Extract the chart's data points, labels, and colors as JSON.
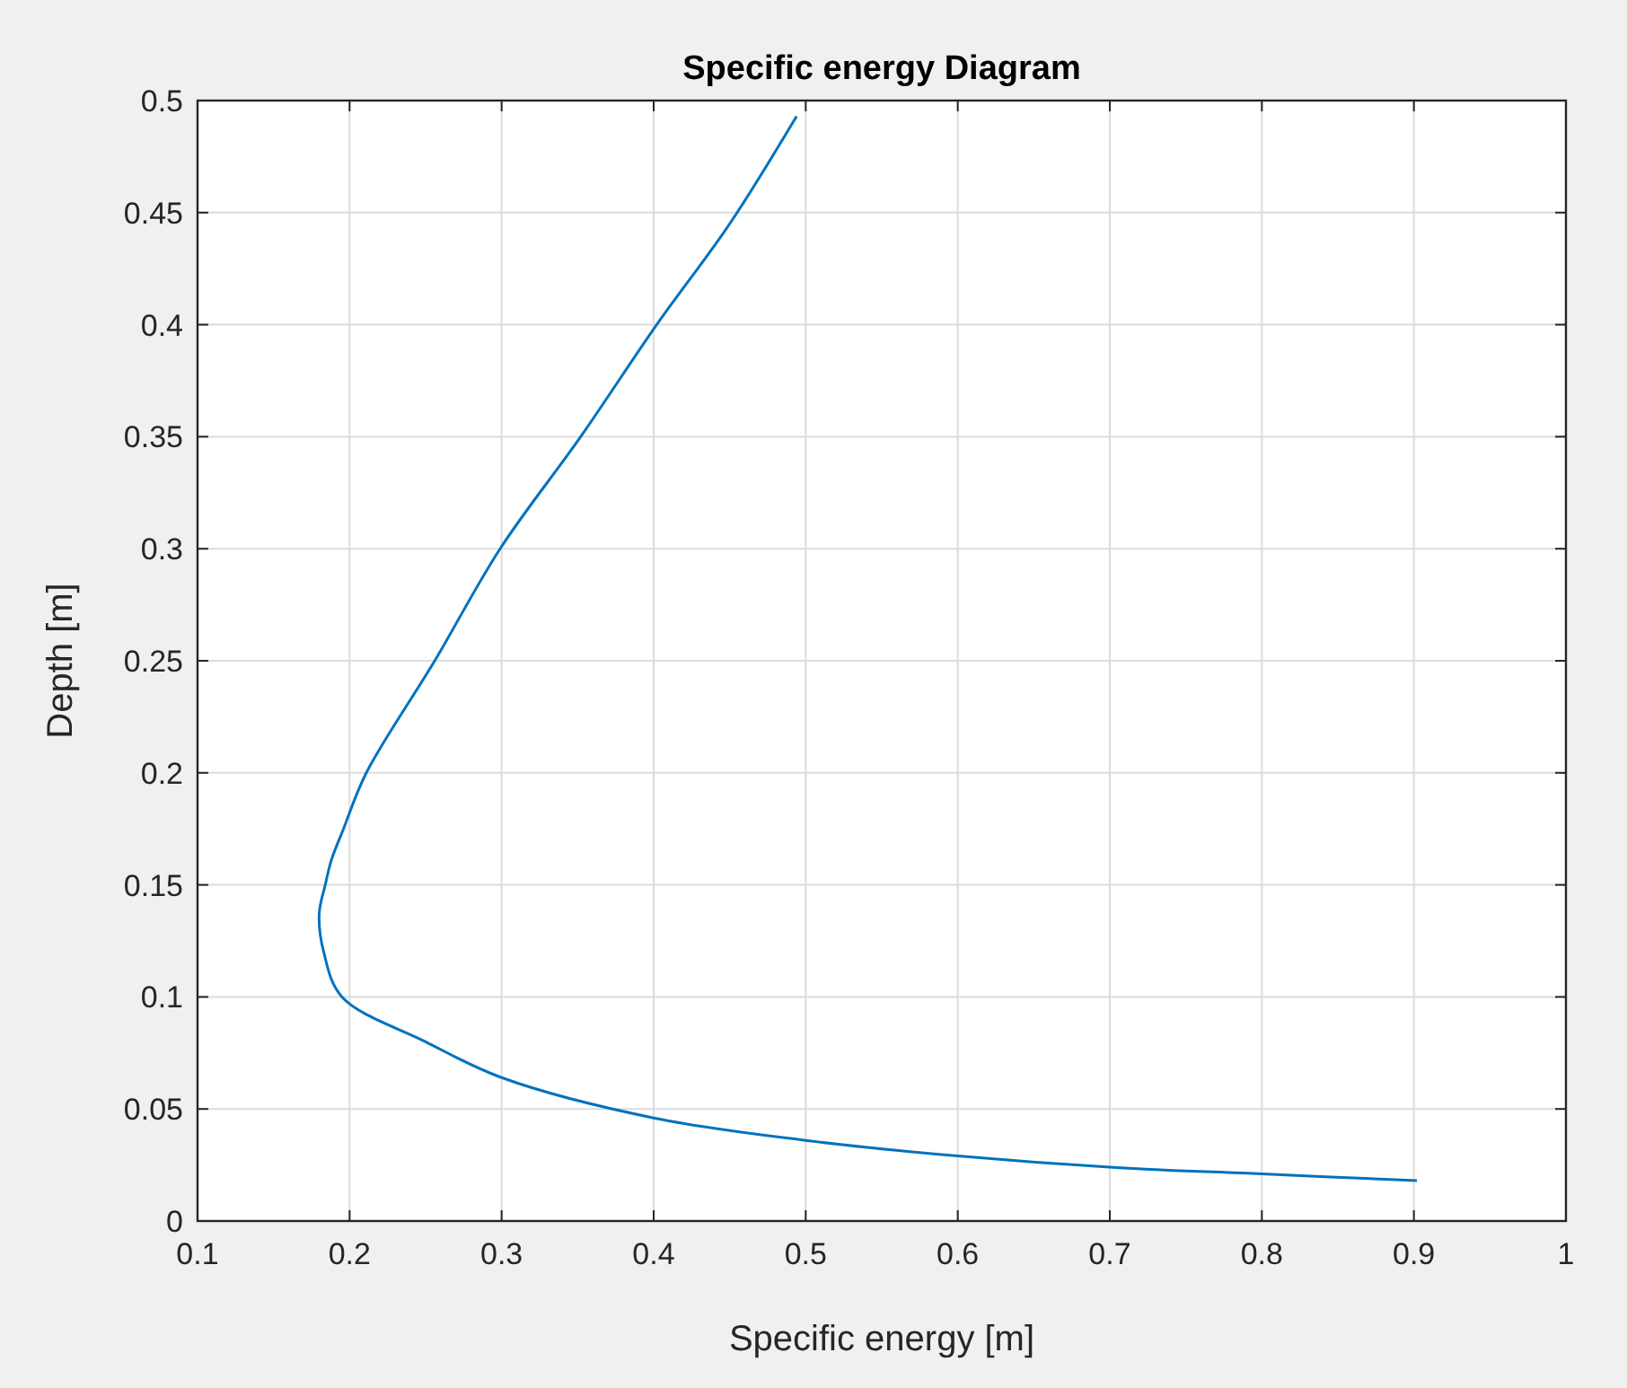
{
  "chart_data": {
    "type": "line",
    "title": "Specific energy Diagram",
    "xlabel": "Specific energy [m]",
    "ylabel": "Depth [m]",
    "x": [
      0.494,
      0.45,
      0.402,
      0.352,
      0.299,
      0.256,
      0.211,
      0.196,
      0.188,
      0.184,
      0.18,
      0.183,
      0.195,
      0.25,
      0.3,
      0.4,
      0.5,
      0.6,
      0.7,
      0.8,
      0.902
    ],
    "series": [
      {
        "color": "#0072bd",
        "values": [
          0.493,
          0.445,
          0.4,
          0.35,
          0.3,
          0.25,
          0.2,
          0.175,
          0.161,
          0.15,
          0.137,
          0.12,
          0.1,
          0.08,
          0.064,
          0.046,
          0.036,
          0.029,
          0.024,
          0.021,
          0.018
        ]
      }
    ],
    "xlim": [
      0.1,
      1
    ],
    "xticks": [
      0.1,
      0.2,
      0.3,
      0.4,
      0.5,
      0.6,
      0.7,
      0.8,
      0.9,
      1
    ],
    "ylim": [
      0,
      0.5
    ],
    "yticks": [
      0,
      0.05,
      0.1,
      0.15,
      0.2,
      0.25,
      0.3,
      0.35,
      0.4,
      0.45,
      0.5
    ],
    "grid": true,
    "marker": "none",
    "line_style": "solid"
  }
}
